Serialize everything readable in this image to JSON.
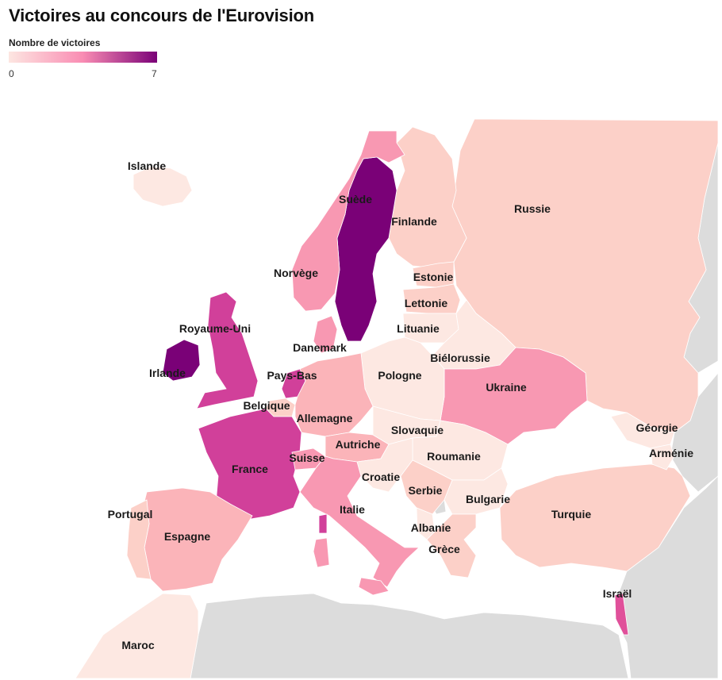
{
  "title": "Victoires au concours de l'Eurovision",
  "legend": {
    "title": "Nombre de victoires",
    "min": "0",
    "max": "7",
    "colors": [
      "#fde6e1",
      "#f98cb3",
      "#7a0177"
    ]
  },
  "colors": {
    "v0": "#fde8e2",
    "v1": "#fcd0c8",
    "v2": "#fbb4b9",
    "v3": "#f898b2",
    "v4": "#e0509a",
    "v5": "#d1409a",
    "v7": "#7a0177",
    "non_participant": "#dcdcdc",
    "sea": "#ffffff"
  },
  "countries": [
    {
      "name": "Islande",
      "victoires": 0
    },
    {
      "name": "Suède",
      "victoires": 7
    },
    {
      "name": "Finlande",
      "victoires": 1
    },
    {
      "name": "Russie",
      "victoires": 1
    },
    {
      "name": "Norvège",
      "victoires": 3
    },
    {
      "name": "Estonie",
      "victoires": 1
    },
    {
      "name": "Lettonie",
      "victoires": 1
    },
    {
      "name": "Royaume-Uni",
      "victoires": 5
    },
    {
      "name": "Danemark",
      "victoires": 3
    },
    {
      "name": "Lituanie",
      "victoires": 0
    },
    {
      "name": "Biélorussie",
      "victoires": 0
    },
    {
      "name": "Irlande",
      "victoires": 7
    },
    {
      "name": "Pays-Bas",
      "victoires": 5
    },
    {
      "name": "Pologne",
      "victoires": 0
    },
    {
      "name": "Ukraine",
      "victoires": 3
    },
    {
      "name": "Belgique",
      "victoires": 1
    },
    {
      "name": "Allemagne",
      "victoires": 2
    },
    {
      "name": "Slovaquie",
      "victoires": 0
    },
    {
      "name": "Géorgie",
      "victoires": 0
    },
    {
      "name": "Autriche",
      "victoires": 2
    },
    {
      "name": "France",
      "victoires": 5
    },
    {
      "name": "Suisse",
      "victoires": 3
    },
    {
      "name": "Roumanie",
      "victoires": 0
    },
    {
      "name": "Arménie",
      "victoires": 0
    },
    {
      "name": "Croatie",
      "victoires": 0
    },
    {
      "name": "Serbie",
      "victoires": 1
    },
    {
      "name": "Bulgarie",
      "victoires": 0
    },
    {
      "name": "Portugal",
      "victoires": 1
    },
    {
      "name": "Italie",
      "victoires": 3
    },
    {
      "name": "Turquie",
      "victoires": 1
    },
    {
      "name": "Espagne",
      "victoires": 2
    },
    {
      "name": "Albanie",
      "victoires": 0
    },
    {
      "name": "Grèce",
      "victoires": 1
    },
    {
      "name": "Israël",
      "victoires": 4
    },
    {
      "name": "Maroc",
      "victoires": 0
    }
  ]
}
